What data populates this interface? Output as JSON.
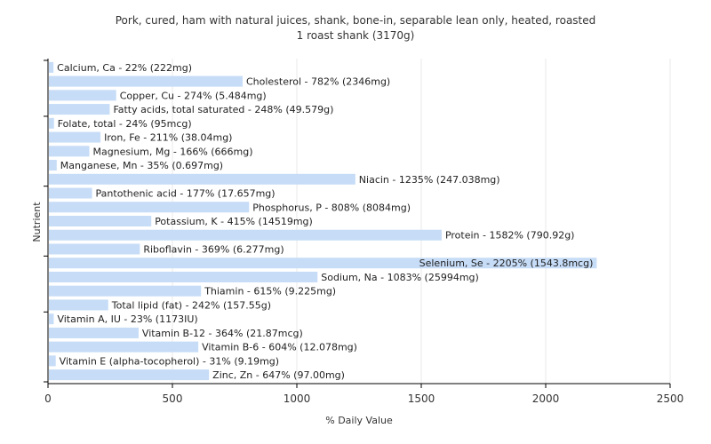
{
  "chart_data": {
    "type": "bar",
    "orientation": "horizontal",
    "title": "Pork, cured, ham with natural juices, shank, bone-in, separable lean only, heated, roasted",
    "subtitle": "1 roast shank (3170g)",
    "xlabel": "% Daily Value",
    "ylabel": "Nutrient",
    "xlim": [
      0,
      2500
    ],
    "xticks": [
      0,
      500,
      1000,
      1500,
      2000,
      2500
    ],
    "grid": true,
    "bar_color": "#c6dcf7",
    "categories": [
      "Calcium, Ca",
      "Cholesterol",
      "Copper, Cu",
      "Fatty acids, total saturated",
      "Folate, total",
      "Iron, Fe",
      "Magnesium, Mg",
      "Manganese, Mn",
      "Niacin",
      "Pantothenic acid",
      "Phosphorus, P",
      "Potassium, K",
      "Protein",
      "Riboflavin",
      "Selenium, Se",
      "Sodium, Na",
      "Thiamin",
      "Total lipid (fat)",
      "Vitamin A, IU",
      "Vitamin B-12",
      "Vitamin B-6",
      "Vitamin E (alpha-tocopherol)",
      "Zinc, Zn"
    ],
    "values": [
      22,
      782,
      274,
      248,
      24,
      211,
      166,
      35,
      1235,
      177,
      808,
      415,
      1582,
      369,
      2205,
      1083,
      615,
      242,
      23,
      364,
      604,
      31,
      647
    ],
    "labels": [
      "Calcium, Ca - 22% (222mg)",
      "Cholesterol - 782% (2346mg)",
      "Copper, Cu - 274% (5.484mg)",
      "Fatty acids, total saturated - 248% (49.579g)",
      "Folate, total - 24% (95mcg)",
      "Iron, Fe - 211% (38.04mg)",
      "Magnesium, Mg - 166% (666mg)",
      "Manganese, Mn - 35% (0.697mg)",
      "Niacin - 1235% (247.038mg)",
      "Pantothenic acid - 177% (17.657mg)",
      "Phosphorus, P - 808% (8084mg)",
      "Potassium, K - 415% (14519mg)",
      "Protein - 1582% (790.92g)",
      "Riboflavin - 369% (6.277mg)",
      "Selenium, Se - 2205% (1543.8mcg)",
      "Sodium, Na - 1083% (25994mg)",
      "Thiamin - 615% (9.225mg)",
      "Total lipid (fat) - 242% (157.55g)",
      "Vitamin A, IU - 23% (1173IU)",
      "Vitamin B-12 - 364% (21.87mcg)",
      "Vitamin B-6 - 604% (12.078mg)",
      "Vitamin E (alpha-tocopherol) - 31% (9.19mg)",
      "Zinc, Zn - 647% (97.00mg)"
    ]
  }
}
